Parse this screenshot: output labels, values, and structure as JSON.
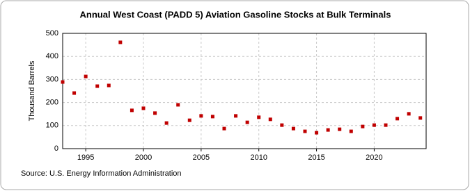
{
  "chart_data": {
    "type": "scatter",
    "title": "Annual West Coast (PADD 5) Aviation Gasoline Stocks at Bulk Terminals",
    "y_label": "Thousand Barrels",
    "source": "Source: U.S. Energy Information Administration",
    "x": [
      1993,
      1994,
      1995,
      1996,
      1997,
      1998,
      1999,
      2000,
      2001,
      2002,
      2003,
      2004,
      2005,
      2006,
      2007,
      2008,
      2009,
      2010,
      2011,
      2012,
      2013,
      2014,
      2015,
      2016,
      2017,
      2018,
      2019,
      2020,
      2021,
      2022,
      2023,
      2024
    ],
    "values": [
      289,
      241,
      313,
      271,
      274,
      461,
      166,
      175,
      154,
      111,
      190,
      123,
      142,
      139,
      87,
      142,
      114,
      136,
      127,
      102,
      87,
      75,
      69,
      81,
      84,
      75,
      96,
      102,
      102,
      130,
      151,
      133
    ],
    "color": "#c00000",
    "xlim": [
      1993,
      2024.5
    ],
    "xticks": [
      1995,
      2000,
      2005,
      2010,
      2015,
      2020
    ],
    "ylim": [
      0,
      500
    ],
    "yticks": [
      0,
      100,
      200,
      300,
      400,
      500
    ],
    "grid": true
  }
}
